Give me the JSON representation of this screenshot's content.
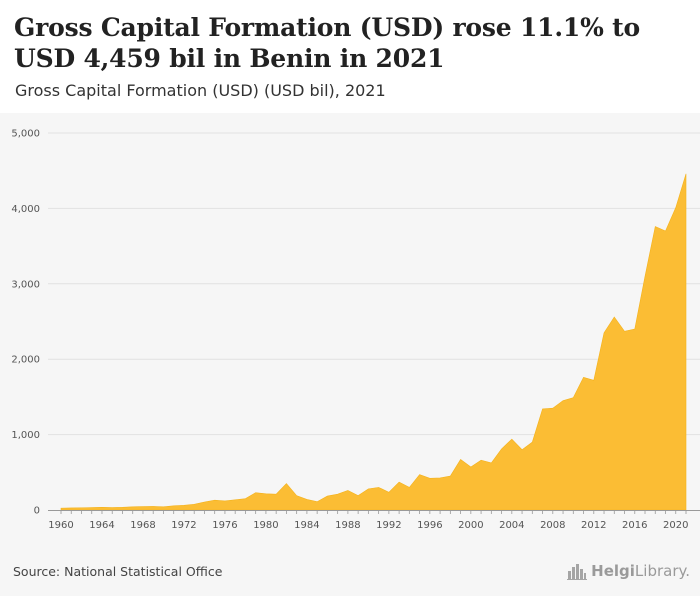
{
  "header": {
    "title": "Gross Capital Formation (USD) rose 11.1% to USD 4,459 bil in Benin in 2021",
    "subtitle": "Gross Capital Formation (USD) (USD bil), 2021"
  },
  "footer": {
    "source": "Source: National Statistical Office",
    "brand_bold": "Helgi",
    "brand_rest": "Library."
  },
  "colors": {
    "area_fill": "#fbbd34",
    "area_stroke": "#f4b21c",
    "grid": "#e1e1e1",
    "axis": "#999999"
  },
  "chart_data": {
    "type": "area",
    "title": "Gross Capital Formation (USD) rose 11.1% to USD 4,459 bil in Benin in 2021",
    "subtitle": "Gross Capital Formation (USD) (USD bil), 2021",
    "xlabel": "",
    "ylabel": "",
    "xlim": [
      1960,
      2021
    ],
    "ylim": [
      0,
      5000
    ],
    "grid": true,
    "y_ticks": [
      0,
      1000,
      2000,
      3000,
      4000,
      5000
    ],
    "y_tick_labels": [
      "0",
      "1,000",
      "2,000",
      "3,000",
      "4,000",
      "5,000"
    ],
    "x_ticks": [
      1960,
      1964,
      1968,
      1972,
      1976,
      1980,
      1984,
      1988,
      1992,
      1996,
      2000,
      2004,
      2008,
      2012,
      2016,
      2020
    ],
    "x_tick_labels": [
      "1960",
      "1964",
      "1968",
      "1972",
      "1976",
      "1980",
      "1984",
      "1988",
      "1992",
      "1996",
      "2000",
      "2004",
      "2008",
      "2012",
      "2016",
      "2020"
    ],
    "x": [
      1960,
      1961,
      1962,
      1963,
      1964,
      1965,
      1966,
      1967,
      1968,
      1969,
      1970,
      1971,
      1972,
      1973,
      1974,
      1975,
      1976,
      1977,
      1978,
      1979,
      1980,
      1981,
      1982,
      1983,
      1984,
      1985,
      1986,
      1987,
      1988,
      1989,
      1990,
      1991,
      1992,
      1993,
      1994,
      1995,
      1996,
      1997,
      1998,
      1999,
      2000,
      2001,
      2002,
      2003,
      2004,
      2005,
      2006,
      2007,
      2008,
      2009,
      2010,
      2011,
      2012,
      2013,
      2014,
      2015,
      2016,
      2017,
      2018,
      2019,
      2020,
      2021
    ],
    "values": [
      25,
      28,
      30,
      33,
      35,
      33,
      36,
      42,
      45,
      48,
      42,
      55,
      62,
      75,
      105,
      130,
      120,
      135,
      150,
      230,
      215,
      210,
      350,
      190,
      140,
      110,
      185,
      210,
      260,
      190,
      280,
      300,
      235,
      370,
      300,
      470,
      420,
      425,
      450,
      670,
      570,
      660,
      625,
      810,
      940,
      800,
      900,
      1340,
      1350,
      1450,
      1490,
      1760,
      1720,
      2350,
      2560,
      2370,
      2400,
      3100,
      3760,
      3700,
      4010,
      4459
    ]
  }
}
